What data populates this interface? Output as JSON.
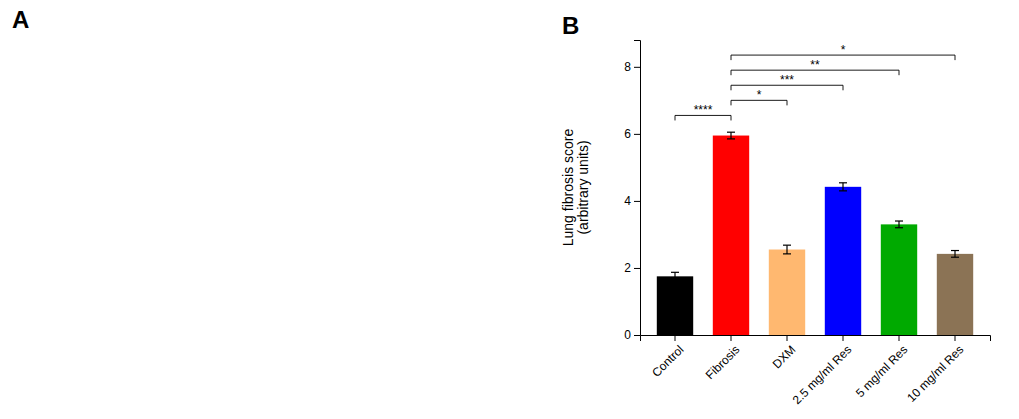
{
  "chart_data": {
    "type": "bar",
    "panel_labels": [
      "A",
      "B"
    ],
    "categories": [
      "Control",
      "Fibrosis",
      "DXM",
      "2.5 mg/ml Res",
      "5 mg/ml Res",
      "10 mg/ml Res"
    ],
    "values": [
      1.75,
      5.95,
      2.55,
      4.42,
      3.3,
      2.42
    ],
    "errors": [
      0.12,
      0.1,
      0.13,
      0.12,
      0.1,
      0.1
    ],
    "colors": [
      "#000000",
      "#ff0000",
      "#ffb870",
      "#0000ff",
      "#00aa00",
      "#8b7355"
    ],
    "ylabel": "Lung fibrosis score\n(arbitrary units)",
    "ylim": [
      0,
      8.8
    ],
    "yticks": [
      0,
      2,
      4,
      6,
      8
    ],
    "grid": false,
    "annotations": [
      {
        "text": "****",
        "from": "Fibrosis",
        "to": "Control",
        "y": 6.55
      },
      {
        "text": "*",
        "from": "Fibrosis",
        "to": "DXM",
        "y": 7.0
      },
      {
        "text": "***",
        "from": "Fibrosis",
        "to": "2.5 mg/ml Res",
        "y": 7.45
      },
      {
        "text": "**",
        "from": "Fibrosis",
        "to": "5 mg/ml Res",
        "y": 7.9
      },
      {
        "text": "*",
        "from": "Fibrosis",
        "to": "10 mg/ml Res",
        "y": 8.35
      }
    ]
  }
}
